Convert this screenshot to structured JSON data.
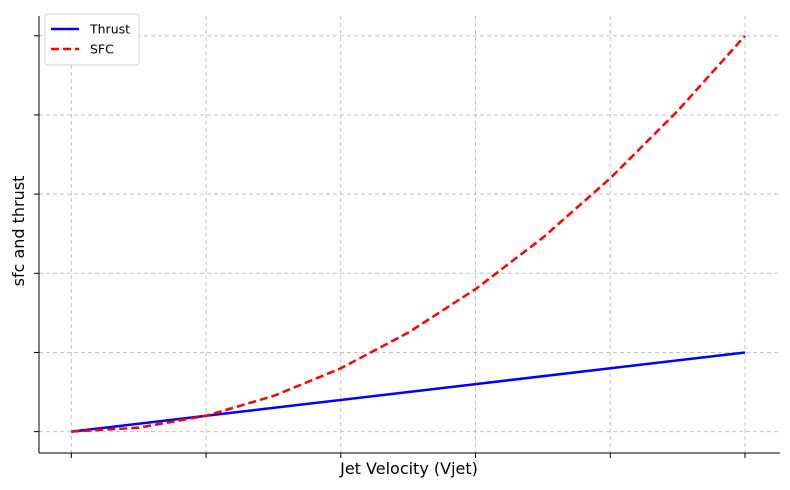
{
  "chart_data": {
    "type": "line",
    "title": "",
    "xlabel": "Jet Velocity (Vjet)",
    "ylabel": "sfc and thrust",
    "x_tick_labels_shown": false,
    "y_tick_labels_shown": false,
    "x_ticks": [
      0,
      1,
      2,
      3,
      4,
      5
    ],
    "y_ticks": [
      0,
      1,
      2,
      3,
      4,
      5
    ],
    "xlim": [
      -0.24,
      5.26
    ],
    "ylim": [
      -0.27,
      5.25
    ],
    "grid": true,
    "legend_position": "top-left",
    "series": [
      {
        "name": "Thrust",
        "color": "#0000ff",
        "style": "solid",
        "x": [
          0,
          5
        ],
        "y": [
          0,
          1
        ]
      },
      {
        "name": "SFC",
        "color": "#ff0000",
        "style": "dashed",
        "x": [
          0,
          0.5,
          1,
          1.5,
          2,
          2.5,
          3,
          3.5,
          4,
          4.5,
          5
        ],
        "y": [
          0,
          0.05,
          0.2,
          0.45,
          0.8,
          1.25,
          1.8,
          2.45,
          3.2,
          4.05,
          5
        ]
      }
    ]
  }
}
